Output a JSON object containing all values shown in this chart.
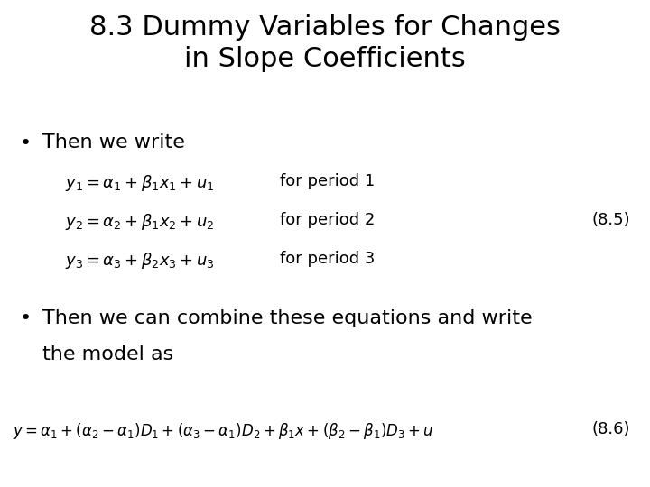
{
  "title_line1": "8.3 Dummy Variables for Changes",
  "title_line2": "in Slope Coefficients",
  "title_fontsize": 22,
  "bullet1_text": "Then we write",
  "eq1": "$y_1 = \\alpha_1 + \\beta_1 x_1 + u_1$",
  "eq1_label": "for period 1",
  "eq2": "$y_2 = \\alpha_2 + \\beta_1 x_2 + u_2$",
  "eq2_label": "for period 2",
  "eq3": "$y_3 = \\alpha_3 + \\beta_2 x_3 + u_3$",
  "eq3_label": "for period 3",
  "eq_number1": "(8.5)",
  "bullet2_text": "Then we can combine these equations and write",
  "bullet2_line2": "the model as",
  "eq4": "$y = \\alpha_1 + (\\alpha_2 - \\alpha_1)D_1 + (\\alpha_3 - \\alpha_1)D_2 + \\beta_1 x + (\\beta_2 - \\beta_1)D_3 + u$",
  "eq_number2": "(8.6)",
  "background_color": "#ffffff",
  "text_color": "#000000",
  "bullet_fontsize": 16,
  "eq_fontsize": 13,
  "label_fontsize": 13,
  "eq4_fontsize": 12,
  "number_fontsize": 13
}
